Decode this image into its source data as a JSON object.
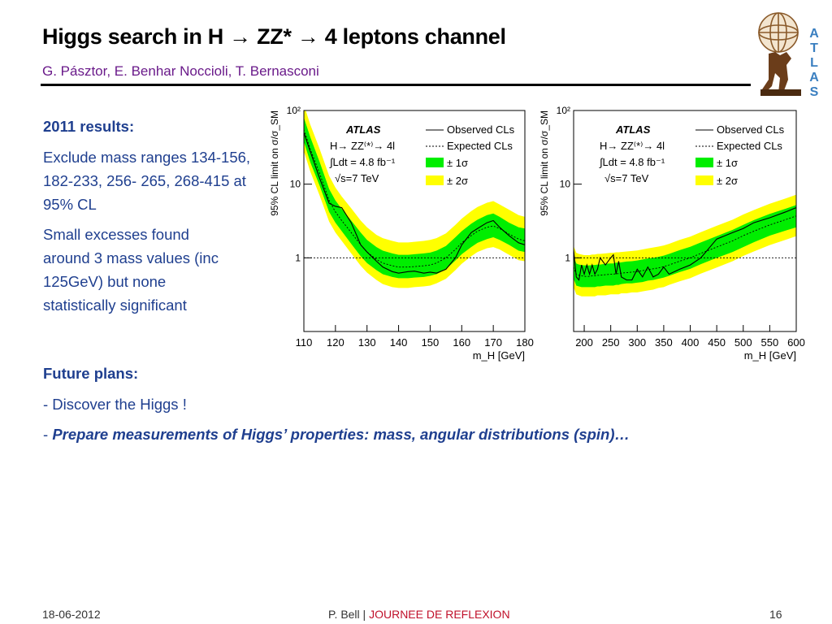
{
  "slide": {
    "title": "Higgs search in H → ZZ* → 4 leptons channel",
    "authors": "G. Pásztor, E. Benhar Noccioli, T. Bernasconi",
    "logo_letters": [
      "A",
      "T",
      "L",
      "A",
      "S"
    ]
  },
  "results": {
    "heading": "2011 results:",
    "exclude": "Exclude mass ranges 134-156, 182-233, 256- 265, 268-415 at 95% CL",
    "excesses": "Small excesses found around 3 mass values (inc 125GeV) but none statistically significant"
  },
  "future": {
    "heading": "Future plans:",
    "item1": "- Discover the Higgs !",
    "item2_prefix": "- ",
    "item2": "Prepare measurements of Higgs’ properties: mass, angular distributions (spin)…"
  },
  "footer": {
    "date": "18-06-2012",
    "author": "P. Bell  |  ",
    "event": "JOURNEE DE REFLEXION",
    "page": "16"
  },
  "colors": {
    "text_blue": "#1f3f8f",
    "subtitle": "#6a1a8a",
    "band1": "#00ee00",
    "band2": "#ffff00",
    "accent": "#c0102a"
  },
  "chart_data": [
    {
      "type": "line",
      "log_y": true,
      "ylabel": "95% CL limit on σ/σ_SM",
      "xlabel": "m_H [GeV]",
      "xlim": [
        110,
        180
      ],
      "ylim": [
        0.1,
        100
      ],
      "xticks": [
        110,
        120,
        130,
        140,
        150,
        160,
        170,
        180
      ],
      "yticks": [
        {
          "v": 1,
          "label": "1"
        },
        {
          "v": 10,
          "label": "10"
        },
        {
          "v": 100,
          "label": "10²"
        }
      ],
      "legend": {
        "experiment": "ATLAS",
        "process": "H→ ZZ⁽*⁾→ 4l",
        "lumi": "∫Ldt = 4.8 fb⁻¹",
        "energy": "√s=7 TeV",
        "observed": "Observed CLs",
        "expected": "Expected CLs",
        "sigma1": "± 1σ",
        "sigma2": "± 2σ"
      },
      "x": [
        110,
        112,
        115,
        118,
        120,
        122,
        125,
        128,
        130,
        133,
        135,
        138,
        140,
        143,
        145,
        148,
        150,
        152,
        155,
        158,
        160,
        163,
        165,
        168,
        170,
        172,
        175,
        178,
        180
      ],
      "observed": [
        50,
        28,
        12,
        5.5,
        5.0,
        4.8,
        3.0,
        1.5,
        1.2,
        0.9,
        0.75,
        0.65,
        0.62,
        0.65,
        0.66,
        0.62,
        0.64,
        0.62,
        0.7,
        1.0,
        1.5,
        2.2,
        2.5,
        3.0,
        3.2,
        2.6,
        2.0,
        1.6,
        1.5
      ],
      "expected": [
        55,
        30,
        14,
        6.0,
        4.2,
        3.2,
        2.2,
        1.5,
        1.2,
        0.95,
        0.85,
        0.78,
        0.75,
        0.75,
        0.76,
        0.78,
        0.8,
        0.85,
        1.0,
        1.3,
        1.6,
        2.0,
        2.3,
        2.6,
        2.7,
        2.5,
        2.1,
        1.8,
        1.7
      ],
      "band1_lo": [
        38,
        20,
        9.5,
        4.2,
        3.0,
        2.3,
        1.55,
        1.05,
        0.85,
        0.68,
        0.6,
        0.55,
        0.53,
        0.53,
        0.54,
        0.55,
        0.57,
        0.6,
        0.7,
        0.92,
        1.12,
        1.4,
        1.6,
        1.8,
        1.9,
        1.75,
        1.5,
        1.25,
        1.2
      ],
      "band1_hi": [
        80,
        44,
        20,
        8.6,
        6.0,
        4.6,
        3.2,
        2.2,
        1.75,
        1.4,
        1.25,
        1.15,
        1.1,
        1.1,
        1.12,
        1.15,
        1.18,
        1.25,
        1.45,
        1.9,
        2.3,
        2.9,
        3.3,
        3.8,
        4.0,
        3.6,
        3.0,
        2.6,
        2.5
      ],
      "band2_lo": [
        28,
        15,
        7.0,
        3.1,
        2.2,
        1.7,
        1.15,
        0.78,
        0.63,
        0.5,
        0.44,
        0.4,
        0.39,
        0.39,
        0.4,
        0.41,
        0.42,
        0.45,
        0.52,
        0.68,
        0.83,
        1.05,
        1.2,
        1.35,
        1.4,
        1.3,
        1.1,
        0.93,
        0.9
      ],
      "band2_hi": [
        120,
        65,
        30,
        13,
        9.0,
        6.8,
        4.7,
        3.2,
        2.6,
        2.05,
        1.85,
        1.7,
        1.62,
        1.62,
        1.65,
        1.7,
        1.75,
        1.85,
        2.15,
        2.8,
        3.4,
        4.3,
        4.9,
        5.6,
        5.9,
        5.3,
        4.5,
        3.8,
        3.6
      ]
    },
    {
      "type": "line",
      "log_y": true,
      "ylabel": "95% CL limit on σ/σ_SM",
      "xlabel": "m_H [GeV]",
      "xlim": [
        180,
        600
      ],
      "ylim": [
        0.1,
        100
      ],
      "xticks": [
        200,
        250,
        300,
        350,
        400,
        450,
        500,
        550,
        600
      ],
      "yticks": [
        {
          "v": 1,
          "label": "1"
        },
        {
          "v": 10,
          "label": "10"
        },
        {
          "v": 100,
          "label": "10²"
        }
      ],
      "legend": {
        "experiment": "ATLAS",
        "process": "H→ ZZ⁽*⁾→ 4l",
        "lumi": "∫Ldt = 4.8 fb⁻¹",
        "energy": "√s=7 TeV",
        "observed": "Observed CLs",
        "expected": "Expected CLs",
        "sigma1": "± 1σ",
        "sigma2": "± 2σ"
      },
      "x": [
        180,
        185,
        190,
        195,
        200,
        205,
        210,
        215,
        220,
        225,
        230,
        240,
        250,
        255,
        260,
        265,
        270,
        280,
        290,
        300,
        310,
        320,
        330,
        340,
        350,
        360,
        380,
        400,
        420,
        450,
        480,
        500,
        520,
        550,
        580,
        600
      ],
      "observed": [
        1.3,
        0.55,
        0.5,
        0.8,
        0.6,
        0.8,
        0.6,
        0.8,
        0.6,
        0.7,
        1.0,
        0.8,
        1.0,
        1.1,
        0.6,
        0.9,
        0.55,
        0.5,
        0.5,
        0.7,
        0.55,
        0.75,
        0.55,
        0.6,
        0.75,
        0.6,
        0.7,
        0.8,
        1.0,
        1.8,
        2.2,
        2.5,
        3.0,
        3.5,
        4.2,
        4.8
      ],
      "expected": [
        0.75,
        0.6,
        0.58,
        0.57,
        0.56,
        0.56,
        0.56,
        0.57,
        0.57,
        0.58,
        0.58,
        0.59,
        0.6,
        0.6,
        0.61,
        0.61,
        0.62,
        0.63,
        0.64,
        0.65,
        0.67,
        0.69,
        0.71,
        0.73,
        0.76,
        0.8,
        0.9,
        1.0,
        1.15,
        1.4,
        1.7,
        2.0,
        2.3,
        2.8,
        3.3,
        3.7
      ],
      "band1_lo": [
        0.52,
        0.42,
        0.41,
        0.4,
        0.4,
        0.4,
        0.4,
        0.4,
        0.4,
        0.41,
        0.41,
        0.42,
        0.42,
        0.42,
        0.43,
        0.43,
        0.44,
        0.45,
        0.45,
        0.46,
        0.47,
        0.49,
        0.5,
        0.52,
        0.54,
        0.57,
        0.64,
        0.71,
        0.82,
        1.0,
        1.2,
        1.4,
        1.63,
        2.0,
        2.35,
        2.6
      ],
      "band1_hi": [
        1.05,
        0.84,
        0.81,
        0.8,
        0.79,
        0.79,
        0.79,
        0.8,
        0.8,
        0.81,
        0.81,
        0.83,
        0.84,
        0.84,
        0.86,
        0.86,
        0.87,
        0.89,
        0.9,
        0.92,
        0.95,
        0.98,
        1.0,
        1.03,
        1.07,
        1.13,
        1.27,
        1.41,
        1.62,
        1.97,
        2.4,
        2.8,
        3.25,
        3.95,
        4.65,
        5.2
      ],
      "band2_lo": [
        0.4,
        0.32,
        0.31,
        0.3,
        0.3,
        0.3,
        0.3,
        0.3,
        0.3,
        0.31,
        0.31,
        0.31,
        0.32,
        0.32,
        0.32,
        0.32,
        0.33,
        0.33,
        0.34,
        0.34,
        0.35,
        0.36,
        0.37,
        0.39,
        0.4,
        0.43,
        0.48,
        0.53,
        0.61,
        0.74,
        0.9,
        1.06,
        1.22,
        1.49,
        1.76,
        1.97
      ],
      "band2_hi": [
        1.45,
        1.17,
        1.13,
        1.11,
        1.09,
        1.09,
        1.09,
        1.11,
        1.11,
        1.13,
        1.13,
        1.15,
        1.17,
        1.17,
        1.19,
        1.19,
        1.2,
        1.22,
        1.24,
        1.26,
        1.3,
        1.34,
        1.38,
        1.42,
        1.47,
        1.55,
        1.75,
        1.94,
        2.23,
        2.72,
        3.3,
        3.88,
        4.46,
        5.43,
        6.4,
        7.2
      ]
    }
  ]
}
